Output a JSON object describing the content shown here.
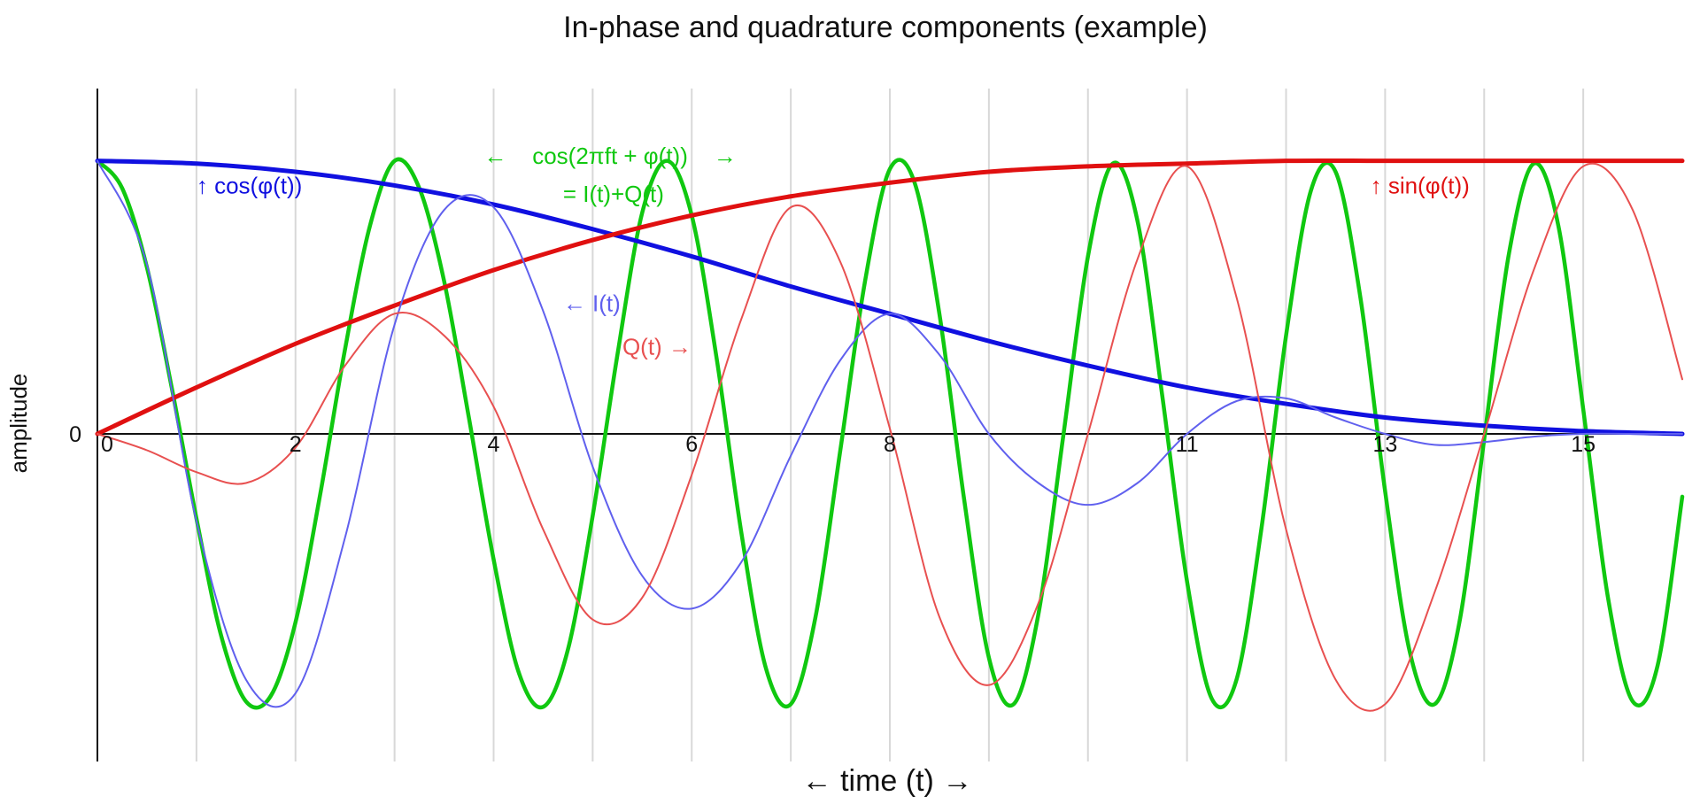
{
  "chart_data": {
    "type": "line",
    "title": "In-phase and quadrature components (example)",
    "xlabel": "← time (t) →",
    "ylabel": "amplitude",
    "y_tick_labels": [
      {
        "value": 0,
        "label": "0"
      }
    ],
    "x_tick_labels": [
      {
        "value": 0,
        "label": "0"
      },
      {
        "value": 2,
        "label": "2"
      },
      {
        "value": 4,
        "label": "4"
      },
      {
        "value": 6,
        "label": "6"
      },
      {
        "value": 8,
        "label": "8"
      },
      {
        "value": 11,
        "label": "11"
      },
      {
        "value": 13,
        "label": "13"
      },
      {
        "value": 15,
        "label": "15"
      }
    ],
    "x_gridlines": [
      1,
      2,
      3,
      4,
      5,
      6,
      7,
      8,
      9,
      10,
      11,
      12,
      13,
      14,
      15
    ],
    "xlim": [
      0,
      16
    ],
    "ylim": [
      -1.2,
      1.2
    ],
    "grid": "vertical",
    "colors": {
      "cos_phi": "#1010e0",
      "sin_phi": "#e01010",
      "signal": "#10c810",
      "I": "#6060ee",
      "Q": "#e85050",
      "grid": "#d8d8d8",
      "axis": "#111111"
    },
    "series": [
      {
        "key": "signal",
        "x": [
          0,
          0.25,
          0.5,
          0.75,
          1,
          1.25,
          1.5,
          1.75,
          2,
          2.25,
          2.5,
          2.75,
          3,
          3.25,
          3.5,
          3.75,
          4,
          4.25,
          4.5,
          4.75,
          5,
          5.25,
          5.5,
          5.75,
          6,
          6.25,
          6.5,
          6.75,
          7,
          7.25,
          7.5,
          7.75,
          8,
          8.25,
          8.5,
          8.75,
          9,
          9.25,
          9.5,
          9.75,
          10,
          10.25,
          10.5,
          10.75,
          11,
          11.25,
          11.5,
          11.75,
          12,
          12.25,
          12.5,
          12.75,
          13,
          13.25,
          13.5,
          13.75,
          14,
          14.25,
          14.5,
          14.75,
          15,
          15.25,
          15.5,
          15.75,
          16
        ],
        "y": [
          1,
          0.9,
          0.61,
          0.17,
          -0.31,
          -0.74,
          -0.98,
          -0.96,
          -0.69,
          -0.22,
          0.31,
          0.76,
          1,
          0.9,
          0.56,
          0.06,
          -0.46,
          -0.87,
          -1,
          -0.79,
          -0.3,
          0.29,
          0.81,
          1,
          0.8,
          0.28,
          -0.36,
          -0.86,
          -0.99,
          -0.67,
          -0.06,
          0.56,
          0.97,
          0.92,
          0.44,
          -0.24,
          -0.82,
          -0.99,
          -0.66,
          -0.01,
          0.65,
          0.99,
          0.78,
          0.14,
          -0.54,
          -0.97,
          -0.9,
          -0.35,
          0.36,
          0.89,
          0.96,
          0.5,
          -0.21,
          -0.8,
          -0.99,
          -0.69,
          -0.02,
          0.66,
          0.99,
          0.76,
          0.09,
          -0.6,
          -0.98,
          -0.85,
          -0.23
        ]
      },
      {
        "key": "cos_phi",
        "x": [
          0,
          1,
          2,
          3,
          4,
          5,
          6,
          7,
          8,
          9,
          10,
          11,
          12,
          13,
          14,
          15,
          16
        ],
        "y": [
          1,
          0.99,
          0.96,
          0.91,
          0.84,
          0.75,
          0.65,
          0.54,
          0.44,
          0.34,
          0.25,
          0.17,
          0.11,
          0.06,
          0.03,
          0.01,
          0
        ]
      },
      {
        "key": "sin_phi",
        "x": [
          0,
          1,
          2,
          3,
          4,
          5,
          6,
          7,
          8,
          9,
          10,
          11,
          12,
          13,
          14,
          15,
          16
        ],
        "y": [
          0,
          0.17,
          0.33,
          0.47,
          0.6,
          0.71,
          0.8,
          0.87,
          0.92,
          0.96,
          0.98,
          0.99,
          1,
          1,
          1,
          1,
          1
        ]
      },
      {
        "key": "I",
        "x": [
          0,
          0.5,
          1,
          1.5,
          2,
          2.5,
          3,
          3.5,
          4,
          4.5,
          5,
          5.5,
          6,
          6.5,
          7,
          7.5,
          8,
          8.5,
          9,
          9.5,
          10,
          10.5,
          11,
          11.5,
          12,
          12.5,
          13,
          13.5,
          14,
          14.5,
          15,
          15.5,
          16
        ],
        "y": [
          1,
          0.62,
          -0.32,
          -0.9,
          -0.95,
          -0.38,
          0.4,
          0.82,
          0.83,
          0.45,
          -0.12,
          -0.52,
          -0.64,
          -0.47,
          -0.08,
          0.27,
          0.44,
          0.29,
          0,
          -0.18,
          -0.26,
          -0.18,
          0,
          0.12,
          0.13,
          0.06,
          0,
          -0.04,
          -0.03,
          -0.01,
          0,
          0,
          0
        ]
      },
      {
        "key": "Q",
        "x": [
          0,
          0.5,
          1,
          1.5,
          2,
          2.5,
          3,
          3.5,
          4,
          4.5,
          5,
          5.5,
          6,
          6.5,
          7,
          7.5,
          8,
          8.5,
          9,
          9.5,
          10,
          10.5,
          11,
          11.5,
          12,
          12.5,
          13,
          13.5,
          14,
          14.5,
          15,
          15.5,
          16
        ],
        "y": [
          0,
          -0.06,
          -0.14,
          -0.18,
          -0.05,
          0.25,
          0.44,
          0.36,
          0.1,
          -0.35,
          -0.68,
          -0.6,
          -0.15,
          0.42,
          0.83,
          0.63,
          0.02,
          -0.67,
          -0.92,
          -0.62,
          0,
          0.64,
          0.98,
          0.5,
          -0.35,
          -0.9,
          -0.99,
          -0.58,
          0,
          0.6,
          0.98,
          0.82,
          0.2
        ]
      }
    ],
    "annotations": [
      {
        "key": "cos_phi",
        "text": "↑ cos(φ(t))",
        "x": 1,
        "y": 0.88
      },
      {
        "key": "sin_phi",
        "text": "↑ sin(φ(t))",
        "x": 12.85,
        "y": 0.88
      },
      {
        "key": "signal",
        "text": "←    cos(2πft + φ(t))    →",
        "x": 3.9,
        "y": 0.99
      },
      {
        "key": "signal",
        "text": "= I(t)+Q(t)",
        "x": 4.7,
        "y": 0.85
      },
      {
        "key": "I",
        "text": "← I(t)",
        "x": 4.7,
        "y": 0.45
      },
      {
        "key": "Q",
        "text": "Q(t) →",
        "x": 5.3,
        "y": 0.29
      }
    ]
  }
}
